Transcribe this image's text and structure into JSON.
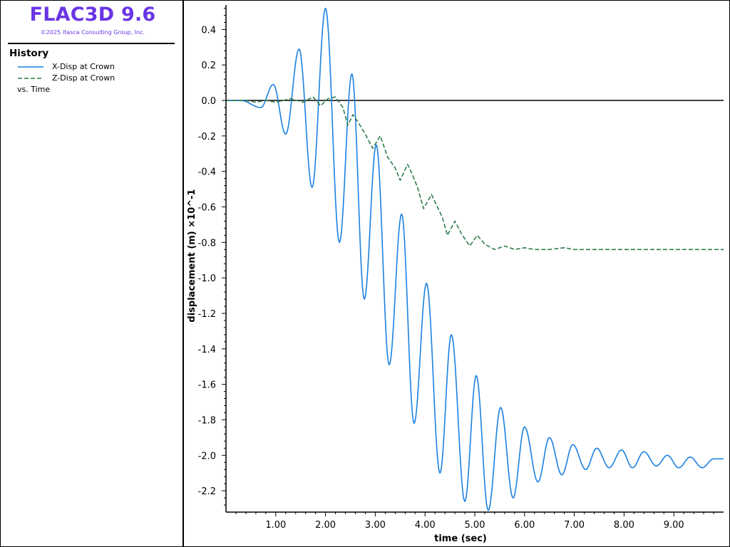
{
  "app": {
    "title": "FLAC3D 9.6",
    "copyright": "©2025 Itasca Consulting Group, Inc.",
    "brand_color": "#6a35e6"
  },
  "legend": {
    "heading": "History",
    "entries": [
      {
        "label": "X-Disp at Crown",
        "color": "#1a80e0",
        "style": "solid"
      },
      {
        "label": "Z-Disp at Crown",
        "color": "#2e7d4a",
        "style": "dashed"
      }
    ],
    "vs": "vs. Time"
  },
  "chart_data": {
    "type": "line",
    "title": "",
    "xlabel": "time (sec)",
    "ylabel": "displacement (m)  ×10^-1",
    "xlim": [
      0,
      10.0
    ],
    "ylim": [
      -2.32,
      0.53
    ],
    "x_ticks": [
      1.0,
      2.0,
      3.0,
      4.0,
      5.0,
      6.0,
      7.0,
      8.0,
      9.0
    ],
    "x_tick_labels": [
      "1.00",
      "2.00",
      "3.00",
      "4.00",
      "5.00",
      "6.00",
      "7.00",
      "8.00",
      "9.00"
    ],
    "y_ticks": [
      0.4,
      0.2,
      0.0,
      -0.2,
      -0.4,
      -0.6,
      -0.8,
      -1.0,
      -1.2,
      -1.4,
      -1.6,
      -1.8,
      -2.0,
      -2.2
    ],
    "y_tick_labels": [
      "0.4",
      "0.2",
      "0.0",
      "-0.2",
      "-0.4",
      "-0.6",
      "-0.8",
      "-1.0",
      "-1.2",
      "-1.4",
      "-1.6",
      "-1.8",
      "-2.0",
      "-2.2"
    ],
    "zero_line": true,
    "grid": false,
    "series": [
      {
        "name": "X-Disp at Crown",
        "color": "#1a80e0",
        "style": "solid",
        "peaks": [
          [
            0.0,
            0.0
          ],
          [
            0.3,
            0.0
          ],
          [
            0.7,
            -0.04
          ],
          [
            0.95,
            0.09
          ],
          [
            1.2,
            -0.19
          ],
          [
            1.47,
            0.29
          ],
          [
            1.73,
            -0.49
          ],
          [
            2.0,
            0.52
          ],
          [
            2.28,
            -0.8
          ],
          [
            2.53,
            0.15
          ],
          [
            2.78,
            -1.12
          ],
          [
            3.02,
            -0.25
          ],
          [
            3.28,
            -1.49
          ],
          [
            3.53,
            -0.64
          ],
          [
            3.78,
            -1.82
          ],
          [
            4.03,
            -1.03
          ],
          [
            4.3,
            -2.1
          ],
          [
            4.53,
            -1.32
          ],
          [
            4.8,
            -2.26
          ],
          [
            5.03,
            -1.55
          ],
          [
            5.27,
            -2.31
          ],
          [
            5.52,
            -1.73
          ],
          [
            5.77,
            -2.24
          ],
          [
            6.0,
            -1.84
          ],
          [
            6.27,
            -2.15
          ],
          [
            6.5,
            -1.9
          ],
          [
            6.75,
            -2.11
          ],
          [
            6.97,
            -1.94
          ],
          [
            7.23,
            -2.08
          ],
          [
            7.45,
            -1.96
          ],
          [
            7.7,
            -2.07
          ],
          [
            7.95,
            -1.97
          ],
          [
            8.17,
            -2.07
          ],
          [
            8.4,
            -1.98
          ],
          [
            8.65,
            -2.06
          ],
          [
            8.87,
            -2.0
          ],
          [
            9.1,
            -2.07
          ],
          [
            9.33,
            -2.01
          ],
          [
            9.57,
            -2.07
          ],
          [
            9.8,
            -2.02
          ],
          [
            10.0,
            -2.02
          ]
        ]
      },
      {
        "name": "Z-Disp at Crown",
        "color": "#2e7d4a",
        "style": "dashed",
        "points": [
          [
            0.0,
            0.0
          ],
          [
            0.4,
            0.0
          ],
          [
            0.6,
            -0.01
          ],
          [
            0.8,
            0.0
          ],
          [
            1.0,
            -0.01
          ],
          [
            1.3,
            0.01
          ],
          [
            1.55,
            -0.01
          ],
          [
            1.75,
            0.02
          ],
          [
            1.9,
            -0.03
          ],
          [
            2.05,
            0.01
          ],
          [
            2.2,
            0.02
          ],
          [
            2.35,
            -0.04
          ],
          [
            2.45,
            -0.14
          ],
          [
            2.55,
            -0.08
          ],
          [
            2.65,
            -0.12
          ],
          [
            2.8,
            -0.19
          ],
          [
            2.95,
            -0.27
          ],
          [
            3.1,
            -0.2
          ],
          [
            3.25,
            -0.32
          ],
          [
            3.4,
            -0.38
          ],
          [
            3.5,
            -0.45
          ],
          [
            3.65,
            -0.36
          ],
          [
            3.75,
            -0.42
          ],
          [
            3.85,
            -0.49
          ],
          [
            3.97,
            -0.61
          ],
          [
            4.13,
            -0.53
          ],
          [
            4.25,
            -0.6
          ],
          [
            4.35,
            -0.66
          ],
          [
            4.45,
            -0.76
          ],
          [
            4.6,
            -0.68
          ],
          [
            4.75,
            -0.76
          ],
          [
            4.9,
            -0.82
          ],
          [
            5.05,
            -0.76
          ],
          [
            5.2,
            -0.81
          ],
          [
            5.4,
            -0.84
          ],
          [
            5.6,
            -0.82
          ],
          [
            5.8,
            -0.84
          ],
          [
            6.0,
            -0.83
          ],
          [
            6.2,
            -0.84
          ],
          [
            6.5,
            -0.84
          ],
          [
            6.8,
            -0.83
          ],
          [
            7.0,
            -0.84
          ],
          [
            7.3,
            -0.84
          ],
          [
            7.6,
            -0.84
          ],
          [
            8.0,
            -0.84
          ],
          [
            8.5,
            -0.84
          ],
          [
            9.0,
            -0.84
          ],
          [
            9.5,
            -0.84
          ],
          [
            10.0,
            -0.84
          ]
        ]
      }
    ]
  }
}
